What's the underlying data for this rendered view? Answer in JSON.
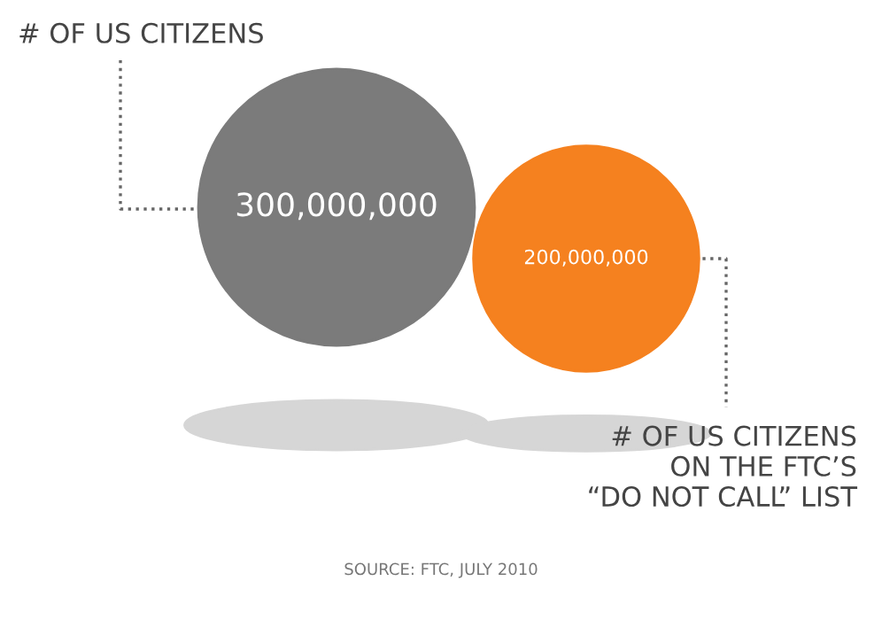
{
  "chart_data": {
    "type": "other",
    "categories": [
      "# OF US CITIZENS",
      "# OF US CITIZENS\nON THE FTC’S\n“DO NOT CALL” LIST"
    ],
    "values": [
      300000000,
      200000000
    ],
    "colors": [
      "#7b7b7b",
      "#f5811f"
    ],
    "value_labels": [
      "300,000,000",
      "200,000,000"
    ],
    "annotations": [
      "SOURCE: FTC, JULY 2010"
    ]
  }
}
